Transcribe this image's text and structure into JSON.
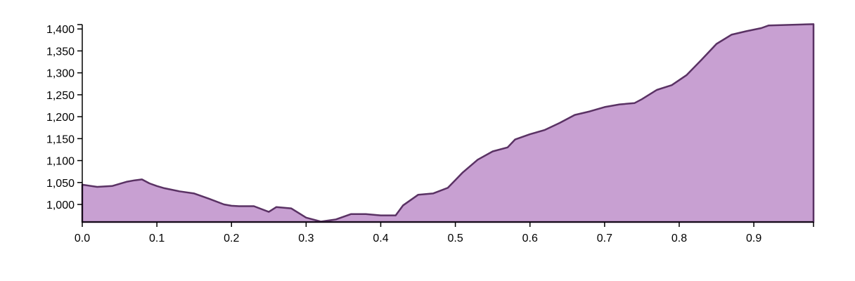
{
  "chart_data": {
    "type": "area",
    "title": "",
    "xlabel": "",
    "ylabel": "",
    "xlim": [
      0,
      0.98
    ],
    "ylim": [
      960,
      1410
    ],
    "x_ticks": [
      0.0,
      0.1,
      0.2,
      0.3,
      0.4,
      0.5,
      0.6,
      0.7,
      0.8,
      0.9
    ],
    "x_tick_labels": [
      "0.0",
      "0.1",
      "0.2",
      "0.3",
      "0.4",
      "0.5",
      "0.6",
      "0.7",
      "0.8",
      "0.9"
    ],
    "y_ticks": [
      1000,
      1050,
      1100,
      1150,
      1200,
      1250,
      1300,
      1350,
      1400
    ],
    "y_tick_labels": [
      "1,000",
      "1,050",
      "1,100",
      "1,150",
      "1,200",
      "1,250",
      "1,300",
      "1,350",
      "1,400"
    ],
    "grid": false,
    "series": [
      {
        "fill_color": "#c8a0d2",
        "line_color": "#5a3264",
        "x": [
          0.0,
          0.02,
          0.04,
          0.06,
          0.07,
          0.08,
          0.09,
          0.1,
          0.11,
          0.13,
          0.15,
          0.17,
          0.19,
          0.2,
          0.21,
          0.23,
          0.25,
          0.26,
          0.28,
          0.3,
          0.32,
          0.34,
          0.36,
          0.38,
          0.4,
          0.42,
          0.43,
          0.45,
          0.47,
          0.49,
          0.51,
          0.53,
          0.55,
          0.57,
          0.58,
          0.6,
          0.62,
          0.64,
          0.66,
          0.68,
          0.7,
          0.72,
          0.74,
          0.75,
          0.77,
          0.79,
          0.81,
          0.83,
          0.85,
          0.87,
          0.89,
          0.91,
          0.92,
          0.94,
          0.96,
          0.98
        ],
        "y": [
          1045,
          1040,
          1042,
          1052,
          1055,
          1057,
          1048,
          1042,
          1037,
          1030,
          1025,
          1013,
          1000,
          997,
          996,
          996,
          983,
          994,
          991,
          970,
          961,
          966,
          978,
          978,
          975,
          975,
          998,
          1022,
          1025,
          1038,
          1073,
          1102,
          1121,
          1130,
          1148,
          1160,
          1170,
          1186,
          1204,
          1212,
          1222,
          1228,
          1231,
          1240,
          1261,
          1272,
          1295,
          1330,
          1366,
          1387,
          1395,
          1402,
          1408,
          1409,
          1410,
          1411
        ]
      }
    ]
  }
}
